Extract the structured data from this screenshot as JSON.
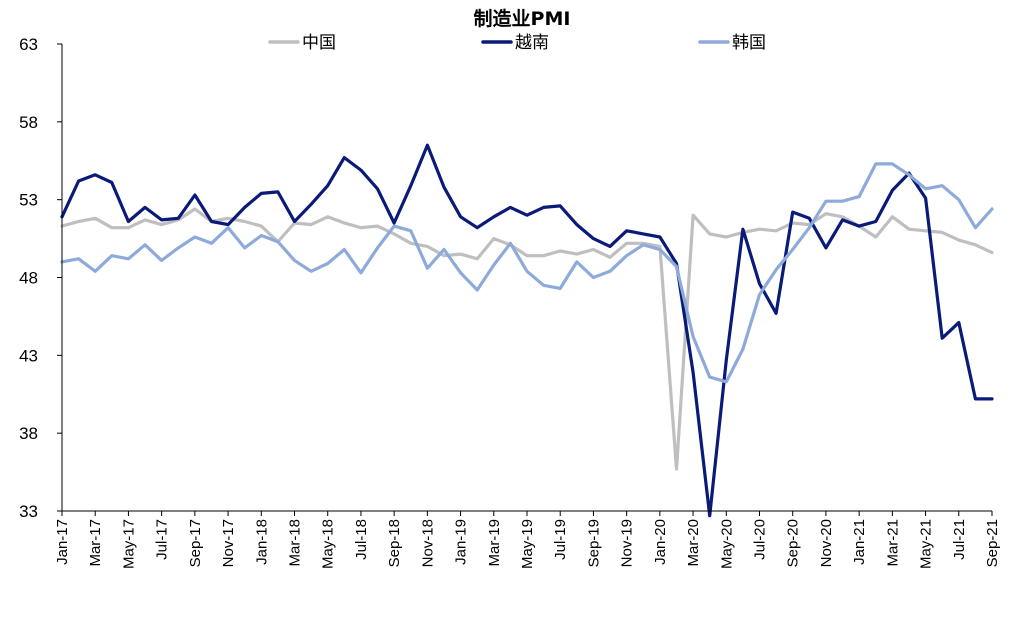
{
  "chart_data": {
    "type": "line",
    "title": "制造业PMI",
    "xlabel": "",
    "ylabel": "",
    "ylim": [
      33,
      63
    ],
    "yticks": [
      33,
      38,
      43,
      48,
      53,
      58,
      63
    ],
    "legend_position": "top",
    "grid": false,
    "x": [
      "Jan-17",
      "Feb-17",
      "Mar-17",
      "Apr-17",
      "May-17",
      "Jun-17",
      "Jul-17",
      "Aug-17",
      "Sep-17",
      "Oct-17",
      "Nov-17",
      "Dec-17",
      "Jan-18",
      "Feb-18",
      "Mar-18",
      "Apr-18",
      "May-18",
      "Jun-18",
      "Jul-18",
      "Aug-18",
      "Sep-18",
      "Oct-18",
      "Nov-18",
      "Dec-18",
      "Jan-19",
      "Feb-19",
      "Mar-19",
      "Apr-19",
      "May-19",
      "Jun-19",
      "Jul-19",
      "Aug-19",
      "Sep-19",
      "Oct-19",
      "Nov-19",
      "Dec-19",
      "Jan-20",
      "Feb-20",
      "Mar-20",
      "Apr-20",
      "May-20",
      "Jun-20",
      "Jul-20",
      "Aug-20",
      "Sep-20",
      "Oct-20",
      "Nov-20",
      "Dec-20",
      "Jan-21",
      "Feb-21",
      "Mar-21",
      "Apr-21",
      "May-21",
      "Jun-21",
      "Jul-21",
      "Aug-21",
      "Sep-21"
    ],
    "x_tick_labels": [
      "Jan-17",
      "Mar-17",
      "May-17",
      "Jul-17",
      "Sep-17",
      "Nov-17",
      "Jan-18",
      "Mar-18",
      "May-18",
      "Jul-18",
      "Sep-18",
      "Nov-18",
      "Jan-19",
      "Mar-19",
      "May-19",
      "Jul-19",
      "Sep-19",
      "Nov-19",
      "Jan-20",
      "Mar-20",
      "May-20",
      "Jul-20",
      "Sep-20",
      "Nov-20",
      "Jan-21",
      "Mar-21",
      "May-21",
      "Jul-21",
      "Sep-21"
    ],
    "series": [
      {
        "name": "中国",
        "color": "#BFBFBF",
        "values": [
          51.3,
          51.6,
          51.8,
          51.2,
          51.2,
          51.7,
          51.4,
          51.7,
          52.4,
          51.6,
          51.8,
          51.6,
          51.3,
          50.3,
          51.5,
          51.4,
          51.9,
          51.5,
          51.2,
          51.3,
          50.8,
          50.2,
          50.0,
          49.4,
          49.5,
          49.2,
          50.5,
          50.1,
          49.4,
          49.4,
          49.7,
          49.5,
          49.8,
          49.3,
          50.2,
          50.2,
          50.0,
          35.7,
          52.0,
          50.8,
          50.6,
          50.9,
          51.1,
          51.0,
          51.5,
          51.4,
          52.1,
          51.9,
          51.3,
          50.6,
          51.9,
          51.1,
          51.0,
          50.9,
          50.4,
          50.1,
          49.6
        ]
      },
      {
        "name": "越南",
        "color": "#0A1A78",
        "values": [
          51.9,
          54.2,
          54.6,
          54.1,
          51.6,
          52.5,
          51.7,
          51.8,
          53.3,
          51.6,
          51.4,
          52.5,
          53.4,
          53.5,
          51.6,
          52.7,
          53.9,
          55.7,
          54.9,
          53.7,
          51.5,
          53.9,
          56.5,
          53.8,
          51.9,
          51.2,
          51.9,
          52.5,
          52.0,
          52.5,
          52.6,
          51.4,
          50.5,
          50.0,
          51.0,
          50.8,
          50.6,
          48.9,
          41.9,
          32.7,
          42.7,
          51.1,
          47.6,
          45.7,
          52.2,
          51.8,
          49.9,
          51.7,
          51.3,
          51.6,
          53.6,
          54.7,
          53.1,
          44.1,
          45.1,
          40.2,
          40.2
        ]
      },
      {
        "name": "韩国",
        "color": "#8EAADB",
        "values": [
          49.0,
          49.2,
          48.4,
          49.4,
          49.2,
          50.1,
          49.1,
          49.9,
          50.6,
          50.2,
          51.2,
          49.9,
          50.7,
          50.3,
          49.1,
          48.4,
          48.9,
          49.8,
          48.3,
          49.9,
          51.3,
          51.0,
          48.6,
          49.8,
          48.3,
          47.2,
          48.8,
          50.2,
          48.4,
          47.5,
          47.3,
          49.0,
          48.0,
          48.4,
          49.4,
          50.1,
          49.8,
          48.7,
          44.2,
          41.6,
          41.3,
          43.4,
          46.9,
          48.5,
          49.8,
          51.2,
          52.9,
          52.9,
          53.2,
          55.3,
          55.3,
          54.6,
          53.7,
          53.9,
          53.0,
          51.2,
          52.4
        ]
      }
    ]
  }
}
